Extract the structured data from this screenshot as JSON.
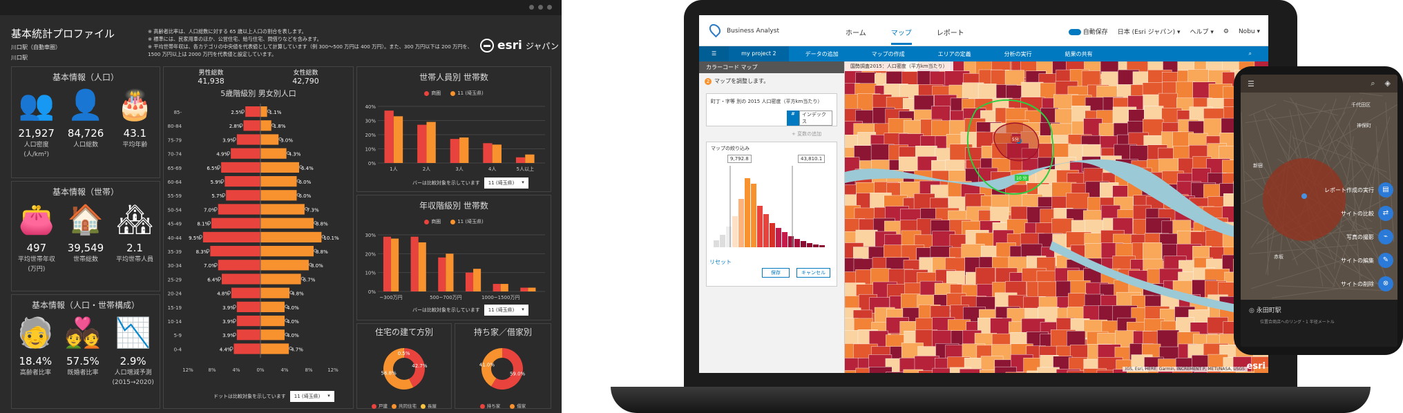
{
  "dashboard": {
    "title": "基本統計プロファイル",
    "subtitle": "川口駅（自動車圏）",
    "area": "川口駅",
    "notes": [
      "※ 高齢者比率は、人口総数に対する 65 歳以上人口の割合を表します。",
      "※ 標準には、民家用車のほか、公営住宅、給与住宅、間借りなどを含みます。",
      "※ 平均世帯年収は、各カテゴリの中央値を代表値として計算しています（例 300～500 万円は 400 万円）。また、300 万円以下は 200 万円を、",
      "1500 万円以上は 2000 万円を代表値と設定しています。"
    ],
    "logo": "esri",
    "logo_suffix": "ジャパン",
    "pop_panel": {
      "title": "基本情報（人口）",
      "stats": [
        {
          "icon": "people-group-icon",
          "glyph": "👥",
          "value": "21,927",
          "label": "人口密度",
          "label2": "(人/km²)"
        },
        {
          "icon": "person-icon",
          "glyph": "👤",
          "value": "84,726",
          "label": "人口総数",
          "label2": ""
        },
        {
          "icon": "cake-icon",
          "glyph": "🎂",
          "value": "43.1",
          "label": "平均年齢",
          "label2": ""
        }
      ]
    },
    "household_panel": {
      "title": "基本情報（世帯）",
      "stats": [
        {
          "icon": "wallet-icon",
          "glyph": "👛",
          "value": "497",
          "label": "平均世帯年収",
          "label2": "(万円)"
        },
        {
          "icon": "house-icon",
          "glyph": "🏠",
          "value": "39,549",
          "label": "世帯総数",
          "label2": ""
        },
        {
          "icon": "family-house-icon",
          "glyph": "🏘",
          "value": "2.1",
          "label": "平均世帯人員",
          "label2": ""
        }
      ]
    },
    "composition_panel": {
      "title": "基本情報（人口・世帯構成）",
      "stats": [
        {
          "icon": "elderly-icon",
          "glyph": "🧓",
          "value": "18.4%",
          "label": "高齢者比率",
          "label2": ""
        },
        {
          "icon": "couple-icon",
          "glyph": "💑",
          "value": "57.5%",
          "label": "既婚者比率",
          "label2": ""
        },
        {
          "icon": "trend-chart-icon",
          "glyph": "📉",
          "value": "2.9%",
          "label": "人口増減予測",
          "label2": "(2015→2020)"
        }
      ]
    },
    "pyramid": {
      "male_label": "男性総数",
      "male_total": "41,938",
      "female_label": "女性総数",
      "female_total": "42,790",
      "title": "5歳階級別 男女別人口",
      "footer": "ドットは比較対象を示しています",
      "select": "11 (埼玉県)",
      "x_ticks": [
        "12%",
        "8%",
        "4%",
        "0%",
        "4%",
        "8%",
        "12%"
      ]
    },
    "household_size": {
      "title": "世帯人員別 世帯数",
      "footer": "バーは比較対象を示しています",
      "select": "11 (埼玉県)"
    },
    "income": {
      "title": "年収階級別 世帯数",
      "footer": "バーは比較対象を示しています",
      "select": "11 (埼玉県)"
    },
    "legend_area": "商圏",
    "legend_compare": "11 (埼玉県)",
    "housing_type": {
      "title": "住宅の建て方別",
      "legend": [
        "戸建",
        "共同住宅",
        "長屋"
      ]
    },
    "ownership": {
      "title": "持ち家／借家別",
      "legend": [
        "持ち家",
        "借家"
      ]
    }
  },
  "chart_data": [
    {
      "type": "bar",
      "orientation": "horizontal",
      "title": "5歳階級別 男女別人口",
      "categories": [
        "85-",
        "80-84",
        "75-79",
        "70-74",
        "65-69",
        "60-64",
        "55-59",
        "50-54",
        "45-49",
        "40-44",
        "35-39",
        "30-34",
        "25-29",
        "20-24",
        "15-19",
        "10-14",
        "5-9",
        "0-4"
      ],
      "series": [
        {
          "name": "男性",
          "values": [
            2.5,
            2.8,
            3.9,
            4.9,
            6.5,
            5.9,
            5.7,
            7.0,
            8.1,
            9.5,
            8.3,
            7.0,
            6.4,
            4.8,
            3.9,
            3.9,
            3.9,
            4.4
          ]
        },
        {
          "name": "女性",
          "values": [
            1.1,
            1.8,
            3.0,
            4.3,
            6.4,
            6.0,
            6.0,
            7.3,
            8.8,
            10.1,
            8.8,
            8.0,
            6.7,
            4.8,
            4.0,
            4.0,
            4.0,
            4.7
          ]
        }
      ],
      "xlim": [
        -12,
        12
      ],
      "bar_labels": [
        "2.5%",
        "1.1%",
        "2.8%",
        "1.8%",
        "3.9%",
        "3.0%",
        "4.9%",
        "4.3%",
        "6.5%",
        "6.4%",
        "5.9%",
        "6.0%",
        "5.7%",
        "6.0%",
        "7.0%",
        "7.3%",
        "8.1%",
        "8.8%",
        "9.5%",
        "10.1%",
        "8.3%",
        "8.8%",
        "7.0%",
        "8.0%",
        "6.4%",
        "6.7%",
        "4.8%",
        "4.8%",
        "3.9%",
        "4.0%",
        "3.9%",
        "4.0%",
        "3.9%",
        "4.0%",
        "4.4%",
        "4.7%"
      ],
      "y_tick_labels": [
        "85-",
        "80-84",
        "75-79",
        "70-74",
        "65-69",
        "60-64",
        "55-59",
        "50-54",
        "45-49",
        "40-44",
        "35-39",
        "30-34",
        "25-29",
        "20-24",
        "15-19",
        "10-14",
        "5-9",
        "0-4"
      ]
    },
    {
      "type": "bar",
      "title": "世帯人員別 世帯数",
      "categories": [
        "1人",
        "2人",
        "3人",
        "4人",
        "5人以上"
      ],
      "series": [
        {
          "name": "商圏",
          "values": [
            37,
            27,
            17,
            14,
            4
          ]
        },
        {
          "name": "11 (埼玉県)",
          "values": [
            33,
            29,
            18,
            13,
            6
          ]
        }
      ],
      "ylim": [
        0,
        40
      ],
      "y_ticks": [
        "0%",
        "10%",
        "20%",
        "30%",
        "40%"
      ]
    },
    {
      "type": "bar",
      "title": "年収階級別 世帯数",
      "categories": [
        "~300万円",
        "",
        "500~700万円",
        "",
        "1000~1500万円",
        ""
      ],
      "series": [
        {
          "name": "商圏",
          "values": [
            29,
            29,
            18,
            10,
            4,
            2
          ]
        },
        {
          "name": "11 (埼玉県)",
          "values": [
            28,
            26,
            20,
            12,
            4,
            2
          ]
        }
      ],
      "ylim": [
        0,
        30
      ],
      "y_ticks": [
        "0%",
        "10%",
        "20%",
        "30%"
      ]
    },
    {
      "type": "pie",
      "title": "住宅の建て方別",
      "categories": [
        "戸建",
        "共同住宅",
        "長屋"
      ],
      "values": [
        42.7,
        56.8,
        0.5
      ],
      "labels": [
        "42.7%",
        "56.8%",
        "0.5%"
      ]
    },
    {
      "type": "pie",
      "title": "持ち家／借家別",
      "categories": [
        "持ち家",
        "借家"
      ],
      "values": [
        59.0,
        41.0
      ],
      "labels": [
        "59.0%",
        "41.0%"
      ]
    }
  ],
  "business_analyst": {
    "brand": "Business Analyst",
    "nav": [
      "ホーム",
      "マップ",
      "レポート"
    ],
    "active_nav": "マップ",
    "autosave": "自動保存",
    "region": "日本 (Esri ジャパン) ▾",
    "help": "ヘルプ ▾",
    "user": "Nobu ▾",
    "toolbar": [
      "my project 2",
      "データの追加",
      "マップの作成",
      "エリアの定義",
      "分析の実行",
      "結果の共有"
    ],
    "panel_title": "カラーコード マップ",
    "step": "マップを調整します。",
    "variable": "町丁・字等 別の 2015 人口密度（平方km当たり）",
    "index_label": "インデックス",
    "add_variable": "+ 変数の追加",
    "filter_title": "マップの絞り込み",
    "range_min": "9,792.8",
    "range_max": "43,810.1",
    "reset": "リセット",
    "save": "保存",
    "cancel": "キャンセル",
    "map_caption": "国勢調査2015：人口密度（平方km当たり）",
    "map_label_5min": "5分",
    "map_label_10min": "10 分",
    "attribution": "IGS, Esri, HERE, Garmin, INCREMENT P, METI/NASA, USGS",
    "map_logo": "esri"
  },
  "mobile": {
    "actions": [
      "レポート作成の実行",
      "サイトの比較",
      "写真の撮影",
      "サイトの編集",
      "サイトの削除"
    ],
    "site_name": "永田町駅",
    "site_desc": "位置合商店へのリング・1 半径メートル",
    "map_labels": [
      "千代田区",
      "神保町",
      "新宿",
      "赤坂"
    ]
  },
  "colors": {
    "male": "#e8433c",
    "female": "#f7922f",
    "accent_blue": "#0079c1",
    "dashboard_bg": "#2b2b2b"
  }
}
